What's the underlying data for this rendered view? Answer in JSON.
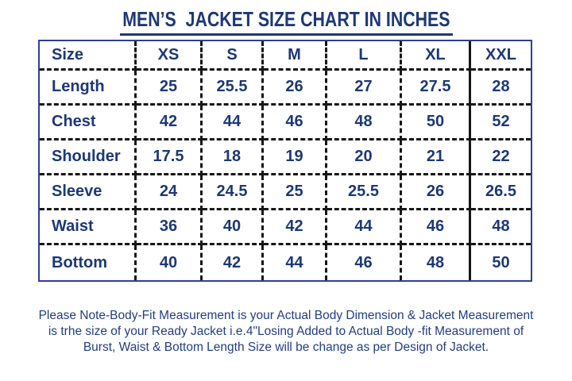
{
  "title": "MEN’S  JACKET SIZE CHART IN INCHES",
  "table": {
    "columns": [
      "Size",
      "XS",
      "S",
      "M",
      "L",
      "XL",
      "XXL"
    ],
    "rows": [
      {
        "label": "Length",
        "values": [
          "25",
          "25.5",
          "26",
          "27",
          "27.5",
          "28"
        ]
      },
      {
        "label": "Chest",
        "values": [
          "42",
          "44",
          "46",
          "48",
          "50",
          "52"
        ]
      },
      {
        "label": "Shoulder",
        "values": [
          "17.5",
          "18",
          "19",
          "20",
          "21",
          "22"
        ]
      },
      {
        "label": "Sleeve",
        "values": [
          "24",
          "24.5",
          "25",
          "25.5",
          "26",
          "26.5"
        ]
      },
      {
        "label": "Waist",
        "values": [
          "36",
          "40",
          "42",
          "44",
          "46",
          "48"
        ]
      },
      {
        "label": "Bottom",
        "values": [
          "40",
          "42",
          "44",
          "46",
          "48",
          "50"
        ]
      }
    ]
  },
  "note": {
    "lines": [
      "Please Note-Body-Fit Measurement is your Actual Body Dimension & Jacket Measurement",
      "is trhe size of your Ready Jacket i.e.4\"Losing Added to Actual Body -fit Measurement of",
      "Burst, Waist & Bottom Length Size will be change as per Design of Jacket."
    ]
  },
  "colors": {
    "text_navy": "#1d3874",
    "border_navy": "#2f3e96",
    "dash_black": "#161616",
    "background": "#ffffff"
  }
}
